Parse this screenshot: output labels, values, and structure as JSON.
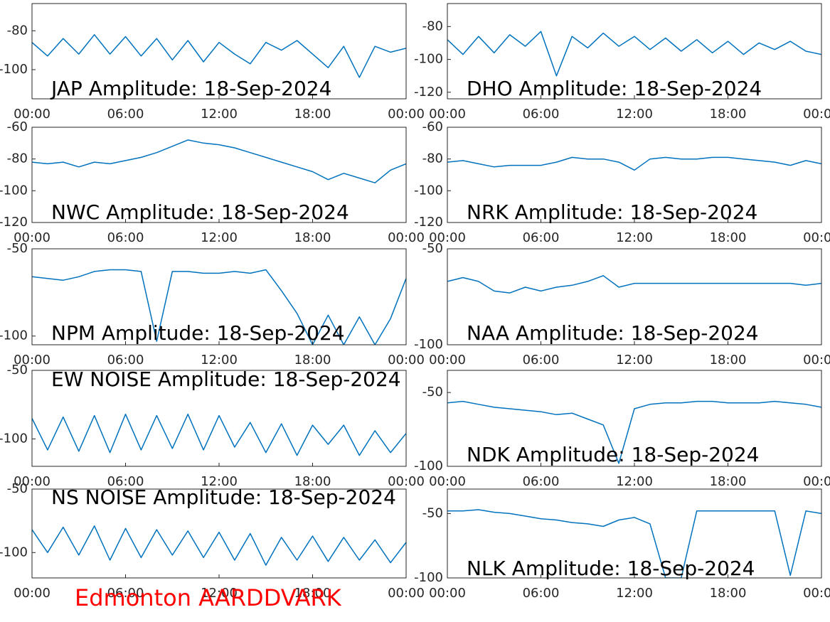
{
  "chart_data": [
    {
      "type": "line",
      "title": "JAP Amplitude: 18-Sep-2024",
      "x": [
        0,
        1,
        2,
        3,
        4,
        5,
        6,
        7,
        8,
        9,
        10,
        11,
        12,
        13,
        14,
        15,
        16,
        17,
        18,
        19,
        20,
        21,
        22,
        23,
        24
      ],
      "series": [
        {
          "color": "#0072bd",
          "values": [
            -86,
            -93,
            -84,
            -92,
            -82,
            -92,
            -83,
            -93,
            -84,
            -95,
            -85,
            -96,
            -86,
            -92,
            -97,
            -86,
            -90,
            -85,
            -92,
            -99,
            -88,
            -104,
            -88,
            -91,
            -89
          ]
        }
      ],
      "xlim": [
        0,
        24
      ],
      "xticks": [
        {
          "value": 0,
          "label": "00:00"
        },
        {
          "value": 6,
          "label": "06:00"
        },
        {
          "value": 12,
          "label": "12:00"
        },
        {
          "value": 18,
          "label": "18:00"
        },
        {
          "value": 24,
          "label": "00:00"
        }
      ],
      "ylim": [
        -115,
        -66
      ],
      "yticks": [
        -100,
        -80
      ]
    },
    {
      "type": "line",
      "title": "DHO Amplitude: 18-Sep-2024",
      "x": [
        0,
        1,
        2,
        3,
        4,
        5,
        6,
        7,
        8,
        9,
        10,
        11,
        12,
        13,
        14,
        15,
        16,
        17,
        18,
        19,
        20,
        21,
        22,
        23,
        24
      ],
      "series": [
        {
          "color": "#0072bd",
          "values": [
            -88,
            -97,
            -86,
            -96,
            -85,
            -92,
            -83,
            -110,
            -86,
            -93,
            -84,
            -92,
            -86,
            -94,
            -87,
            -95,
            -88,
            -96,
            -89,
            -97,
            -90,
            -94,
            -89,
            -95,
            -97
          ]
        }
      ],
      "xlim": [
        0,
        24
      ],
      "xticks": [
        {
          "value": 0,
          "label": "00:00"
        },
        {
          "value": 6,
          "label": "06:00"
        },
        {
          "value": 12,
          "label": "12:00"
        },
        {
          "value": 18,
          "label": "18:00"
        },
        {
          "value": 24,
          "label": "00:00"
        }
      ],
      "ylim": [
        -124,
        -66
      ],
      "yticks": [
        -120,
        -100,
        -80
      ]
    },
    {
      "type": "line",
      "title": "NWC Amplitude: 18-Sep-2024",
      "x": [
        0,
        1,
        2,
        3,
        4,
        5,
        6,
        7,
        8,
        9,
        10,
        11,
        12,
        13,
        14,
        15,
        16,
        17,
        18,
        19,
        20,
        21,
        22,
        23,
        24
      ],
      "series": [
        {
          "color": "#0072bd",
          "values": [
            -82,
            -83,
            -82,
            -85,
            -82,
            -83,
            -81,
            -79,
            -76,
            -72,
            -68,
            -70,
            -71,
            -73,
            -76,
            -79,
            -82,
            -85,
            -88,
            -93,
            -89,
            -92,
            -95,
            -87,
            -83
          ]
        }
      ],
      "xlim": [
        0,
        24
      ],
      "xticks": [
        {
          "value": 0,
          "label": "00:00"
        },
        {
          "value": 6,
          "label": "06:00"
        },
        {
          "value": 12,
          "label": "12:00"
        },
        {
          "value": 18,
          "label": "18:00"
        },
        {
          "value": 24,
          "label": "00:00"
        }
      ],
      "ylim": [
        -120,
        -60
      ],
      "yticks": [
        -120,
        -100,
        -80,
        -60
      ]
    },
    {
      "type": "line",
      "title": "NRK Amplitude: 18-Sep-2024",
      "x": [
        0,
        1,
        2,
        3,
        4,
        5,
        6,
        7,
        8,
        9,
        10,
        11,
        12,
        13,
        14,
        15,
        16,
        17,
        18,
        19,
        20,
        21,
        22,
        23,
        24
      ],
      "series": [
        {
          "color": "#0072bd",
          "values": [
            -82,
            -81,
            -83,
            -85,
            -84,
            -84,
            -84,
            -82,
            -79,
            -80,
            -80,
            -82,
            -87,
            -80,
            -79,
            -80,
            -80,
            -79,
            -79,
            -80,
            -81,
            -82,
            -84,
            -81,
            -83
          ]
        }
      ],
      "xlim": [
        0,
        24
      ],
      "xticks": [
        {
          "value": 0,
          "label": "00:00"
        },
        {
          "value": 6,
          "label": "06:00"
        },
        {
          "value": 12,
          "label": "12:00"
        },
        {
          "value": 18,
          "label": "18:00"
        },
        {
          "value": 24,
          "label": "00:00"
        }
      ],
      "ylim": [
        -120,
        -60
      ],
      "yticks": [
        -120,
        -100,
        -80,
        -60
      ]
    },
    {
      "type": "line",
      "title": "NPM Amplitude: 18-Sep-2024",
      "x": [
        0,
        1,
        2,
        3,
        4,
        5,
        6,
        7,
        8,
        9,
        10,
        11,
        12,
        13,
        14,
        15,
        16,
        17,
        18,
        19,
        20,
        21,
        22,
        23,
        24
      ],
      "series": [
        {
          "color": "#0072bd",
          "values": [
            -66,
            -67,
            -68,
            -66,
            -63,
            -62,
            -62,
            -63,
            -103,
            -63,
            -63,
            -64,
            -64,
            -63,
            -64,
            -62,
            -74,
            -87,
            -105,
            -88,
            -105,
            -89,
            -105,
            -90,
            -67
          ]
        }
      ],
      "xlim": [
        0,
        24
      ],
      "xticks": [
        {
          "value": 0,
          "label": "00:00"
        },
        {
          "value": 6,
          "label": "06:00"
        },
        {
          "value": 12,
          "label": "12:00"
        },
        {
          "value": 18,
          "label": "18:00"
        },
        {
          "value": 24,
          "label": "00:00"
        }
      ],
      "ylim": [
        -105,
        -50
      ],
      "yticks": [
        -100,
        -50
      ]
    },
    {
      "type": "line",
      "title": "NAA Amplitude: 18-Sep-2024",
      "x": [
        0,
        1,
        2,
        3,
        4,
        5,
        6,
        7,
        8,
        9,
        10,
        11,
        12,
        13,
        14,
        15,
        16,
        17,
        18,
        19,
        20,
        21,
        22,
        23,
        24
      ],
      "series": [
        {
          "color": "#0072bd",
          "values": [
            -67,
            -65,
            -67,
            -72,
            -73,
            -70,
            -72,
            -70,
            -69,
            -67,
            -64,
            -70,
            -68,
            -68,
            -68,
            -68,
            -68,
            -68,
            -68,
            -68,
            -68,
            -68,
            -68,
            -69,
            -68
          ]
        }
      ],
      "xlim": [
        0,
        24
      ],
      "xticks": [
        {
          "value": 0,
          "label": "00:00"
        },
        {
          "value": 6,
          "label": "06:00"
        },
        {
          "value": 12,
          "label": "12:00"
        },
        {
          "value": 18,
          "label": "18:00"
        },
        {
          "value": 24,
          "label": "00:00"
        }
      ],
      "ylim": [
        -100,
        -50
      ],
      "yticks": [
        -100,
        -50
      ]
    },
    {
      "type": "line",
      "title": "EW NOISE Amplitude: 18-Sep-2024",
      "x": [
        0,
        1,
        2,
        3,
        4,
        5,
        6,
        7,
        8,
        9,
        10,
        11,
        12,
        13,
        14,
        15,
        16,
        17,
        18,
        19,
        20,
        21,
        22,
        23,
        24
      ],
      "series": [
        {
          "color": "#0072bd",
          "values": [
            -85,
            -108,
            -84,
            -109,
            -83,
            -110,
            -82,
            -108,
            -83,
            -107,
            -82,
            -108,
            -83,
            -106,
            -88,
            -110,
            -89,
            -112,
            -90,
            -104,
            -90,
            -112,
            -94,
            -110,
            -96
          ]
        }
      ],
      "xlim": [
        0,
        24
      ],
      "xticks": [
        {
          "value": 0,
          "label": "00:00"
        },
        {
          "value": 6,
          "label": "06:00"
        },
        {
          "value": 12,
          "label": "12:00"
        },
        {
          "value": 18,
          "label": "18:00"
        },
        {
          "value": 24,
          "label": "00:00"
        }
      ],
      "ylim": [
        -120,
        -50
      ],
      "yticks": [
        -100,
        -50
      ]
    },
    {
      "type": "line",
      "title": "NDK Amplitude: 18-Sep-2024",
      "x": [
        0,
        1,
        2,
        3,
        4,
        5,
        6,
        7,
        8,
        9,
        10,
        11,
        12,
        13,
        14,
        15,
        16,
        17,
        18,
        19,
        20,
        21,
        22,
        23,
        24
      ],
      "series": [
        {
          "color": "#0072bd",
          "values": [
            -57,
            -56,
            -58,
            -60,
            -61,
            -62,
            -63,
            -65,
            -64,
            -68,
            -72,
            -98,
            -61,
            -58,
            -57,
            -57,
            -56,
            -56,
            -57,
            -57,
            -57,
            -56,
            -57,
            -58,
            -60
          ]
        }
      ],
      "xlim": [
        0,
        24
      ],
      "xticks": [
        {
          "value": 0,
          "label": "00:00"
        },
        {
          "value": 6,
          "label": "06:00"
        },
        {
          "value": 12,
          "label": "12:00"
        },
        {
          "value": 18,
          "label": "18:00"
        },
        {
          "value": 24,
          "label": "00:00"
        }
      ],
      "ylim": [
        -100,
        -35
      ],
      "yticks": [
        -100,
        -50
      ]
    },
    {
      "type": "line",
      "title": "NS NOISE Amplitude: 18-Sep-2024",
      "x": [
        0,
        1,
        2,
        3,
        4,
        5,
        6,
        7,
        8,
        9,
        10,
        11,
        12,
        13,
        14,
        15,
        16,
        17,
        18,
        19,
        20,
        21,
        22,
        23,
        24
      ],
      "series": [
        {
          "color": "#0072bd",
          "values": [
            -82,
            -100,
            -80,
            -102,
            -79,
            -106,
            -81,
            -104,
            -82,
            -102,
            -83,
            -104,
            -84,
            -106,
            -85,
            -110,
            -88,
            -106,
            -87,
            -107,
            -88,
            -106,
            -90,
            -108,
            -92
          ]
        }
      ],
      "xlim": [
        0,
        24
      ],
      "xticks": [
        {
          "value": 0,
          "label": "00:00"
        },
        {
          "value": 6,
          "label": "06:00"
        },
        {
          "value": 12,
          "label": "12:00"
        },
        {
          "value": 18,
          "label": "18:00"
        },
        {
          "value": 24,
          "label": "00:00"
        }
      ],
      "ylim": [
        -120,
        -50
      ],
      "yticks": [
        -100,
        -50
      ]
    },
    {
      "type": "line",
      "title": "NLK Amplitude: 18-Sep-2024",
      "x": [
        0,
        1,
        2,
        3,
        4,
        5,
        6,
        7,
        8,
        9,
        10,
        11,
        12,
        13,
        14,
        15,
        16,
        17,
        18,
        19,
        20,
        21,
        22,
        23,
        24
      ],
      "series": [
        {
          "color": "#0072bd",
          "values": [
            -48,
            -48,
            -47,
            -49,
            -50,
            -52,
            -54,
            -55,
            -57,
            -58,
            -60,
            -55,
            -53,
            -58,
            -100,
            -100,
            -48,
            -48,
            -48,
            -48,
            -48,
            -48,
            -98,
            -48,
            -50
          ]
        }
      ],
      "xlim": [
        0,
        24
      ],
      "xticks": [
        {
          "value": 0,
          "label": "00:00"
        },
        {
          "value": 6,
          "label": "06:00"
        },
        {
          "value": 12,
          "label": "12:00"
        },
        {
          "value": 18,
          "label": "18:00"
        },
        {
          "value": 24,
          "label": "00:00"
        }
      ],
      "ylim": [
        -100,
        -31
      ],
      "yticks": [
        -100,
        -50
      ]
    }
  ],
  "caption": "Edmonton AARDDVARK"
}
